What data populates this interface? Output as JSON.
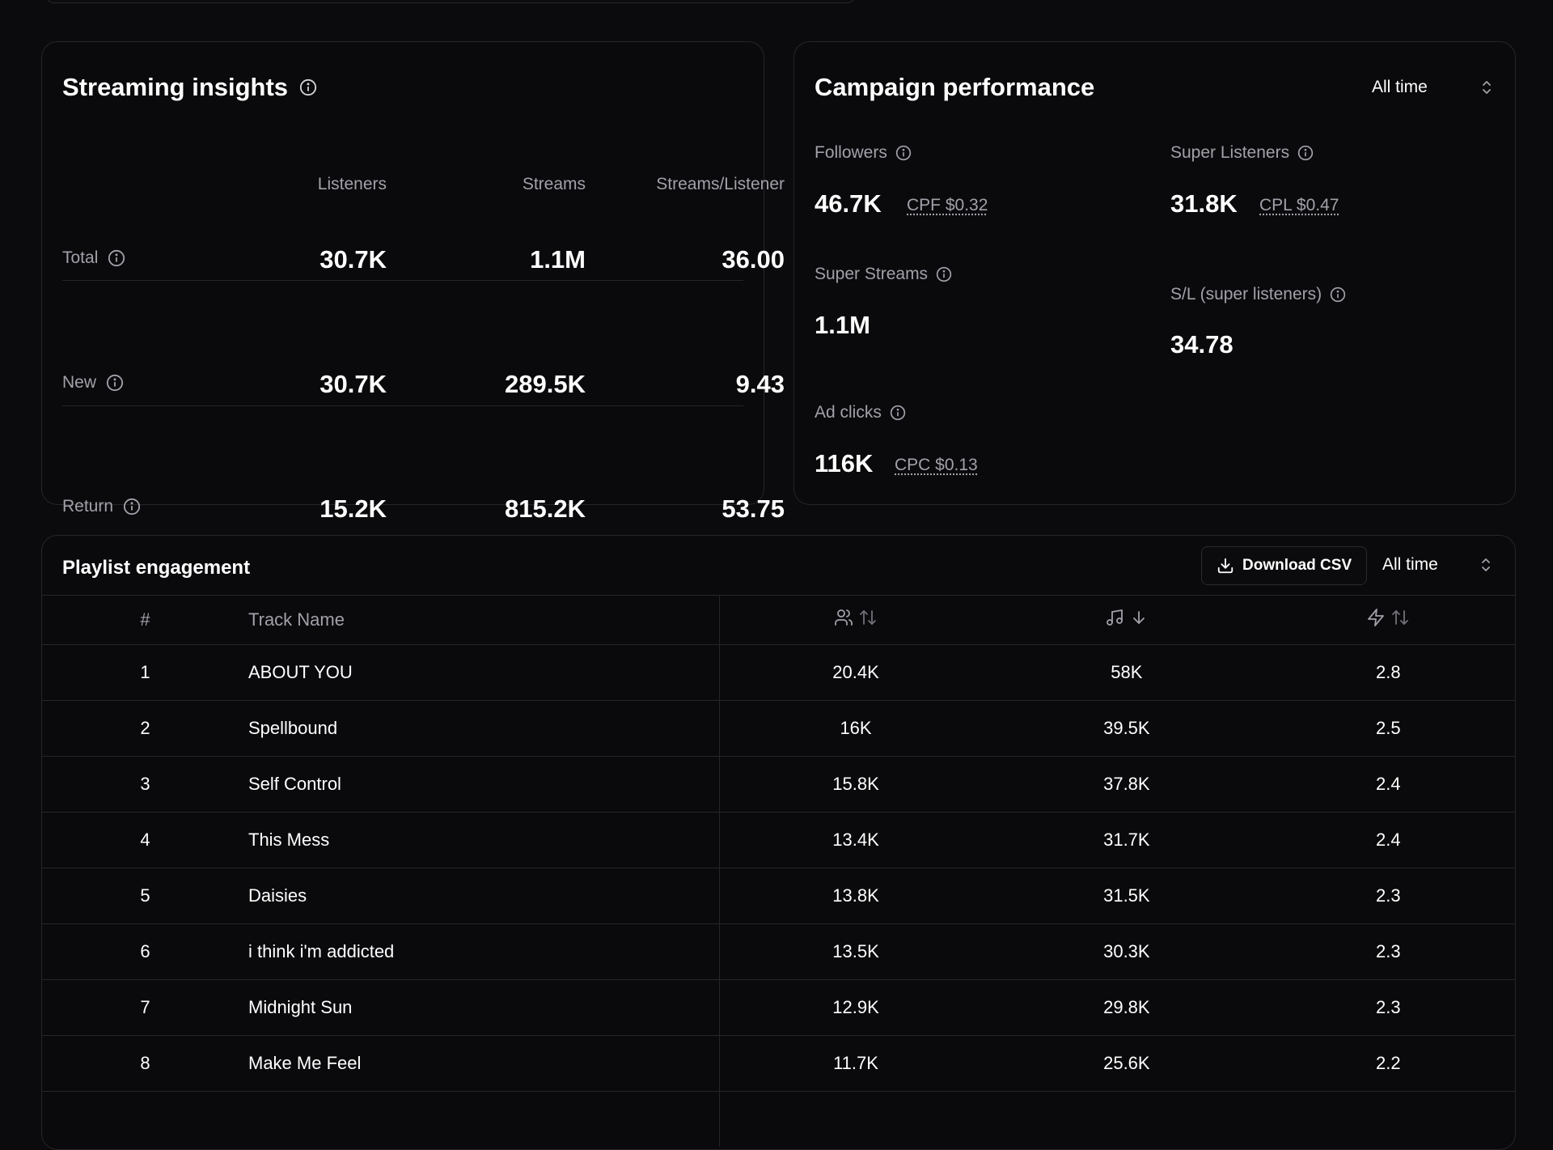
{
  "streaming_insights": {
    "title": "Streaming insights",
    "columns": [
      "Listeners",
      "Streams",
      "Streams/Listener"
    ],
    "rows": [
      {
        "label": "Total",
        "listeners": "30.7K",
        "streams": "1.1M",
        "ratio": "36.00"
      },
      {
        "label": "New",
        "listeners": "30.7K",
        "streams": "289.5K",
        "ratio": "9.43"
      },
      {
        "label": "Return",
        "listeners": "15.2K",
        "streams": "815.2K",
        "ratio": "53.75"
      }
    ]
  },
  "campaign_performance": {
    "title": "Campaign performance",
    "range": "All time",
    "followers": {
      "label": "Followers",
      "value": "46.7K",
      "cost": "CPF $0.32"
    },
    "super_listeners": {
      "label": "Super Listeners",
      "value": "31.8K",
      "cost": "CPL $0.47"
    },
    "super_streams": {
      "label": "Super Streams",
      "value": "1.1M"
    },
    "sl_ratio": {
      "label": "S/L (super listeners)",
      "value": "34.78"
    },
    "ad_clicks": {
      "label": "Ad clicks",
      "value": "116K",
      "cost": "CPC $0.13"
    }
  },
  "playlist_engagement": {
    "title": "Playlist engagement",
    "download_label": "Download CSV",
    "range": "All time",
    "columns": {
      "number": "#",
      "track": "Track Name"
    },
    "column_icons": [
      "users-icon",
      "sort-icon",
      "music-note-icon",
      "arrow-down-icon",
      "lightning-icon",
      "sort-icon"
    ],
    "rows": [
      {
        "num": "1",
        "track": "ABOUT YOU",
        "listeners": "20.4K",
        "streams": "58K",
        "ratio": "2.8"
      },
      {
        "num": "2",
        "track": "Spellbound",
        "listeners": "16K",
        "streams": "39.5K",
        "ratio": "2.5"
      },
      {
        "num": "3",
        "track": "Self Control",
        "listeners": "15.8K",
        "streams": "37.8K",
        "ratio": "2.4"
      },
      {
        "num": "4",
        "track": "This Mess",
        "listeners": "13.4K",
        "streams": "31.7K",
        "ratio": "2.4"
      },
      {
        "num": "5",
        "track": "Daisies",
        "listeners": "13.8K",
        "streams": "31.5K",
        "ratio": "2.3"
      },
      {
        "num": "6",
        "track": "i think i'm addicted",
        "listeners": "13.5K",
        "streams": "30.3K",
        "ratio": "2.3"
      },
      {
        "num": "7",
        "track": "Midnight Sun",
        "listeners": "12.9K",
        "streams": "29.8K",
        "ratio": "2.3"
      },
      {
        "num": "8",
        "track": "Make Me Feel",
        "listeners": "11.7K",
        "streams": "25.6K",
        "ratio": "2.2"
      }
    ]
  }
}
